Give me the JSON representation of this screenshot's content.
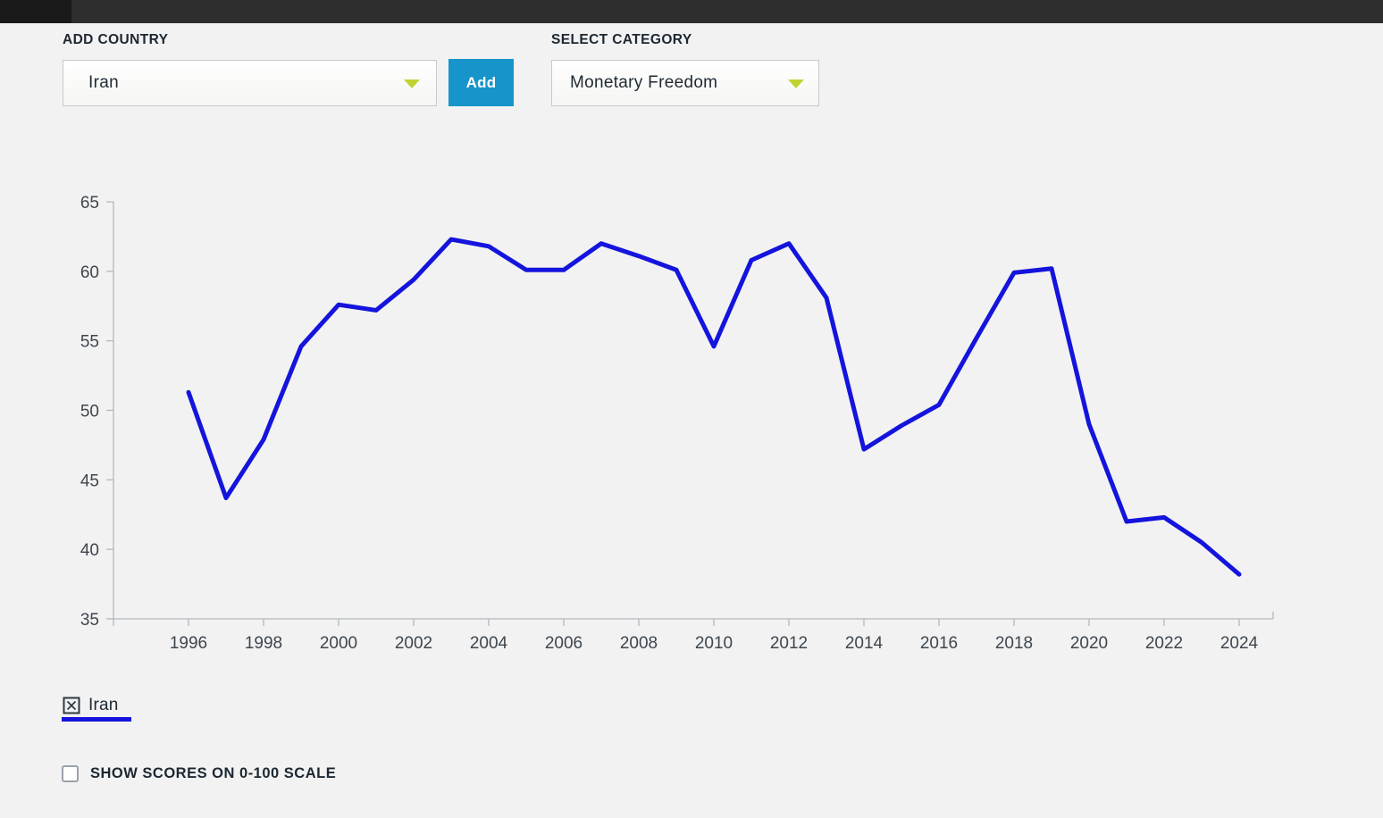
{
  "controls": {
    "add_country": {
      "label": "ADD COUNTRY",
      "dropdown_value": "Iran",
      "add_button_label": "Add"
    },
    "select_category": {
      "label": "SELECT CATEGORY",
      "dropdown_value": "Monetary Freedom"
    }
  },
  "chart_data": {
    "type": "line",
    "title": "",
    "xlabel": "",
    "ylabel": "",
    "ylim": [
      35,
      65
    ],
    "xlim": [
      1994,
      2025
    ],
    "grid": false,
    "legend_position": "bottom-left",
    "xticks": [
      1996,
      1998,
      2000,
      2002,
      2004,
      2006,
      2008,
      2010,
      2012,
      2014,
      2016,
      2018,
      2020,
      2022,
      2024
    ],
    "yticks": [
      35,
      40,
      45,
      50,
      55,
      60,
      65
    ],
    "series": [
      {
        "name": "Iran",
        "color": "#1414dd",
        "x": [
          1996,
          1997,
          1998,
          1999,
          2000,
          2001,
          2002,
          2003,
          2004,
          2005,
          2006,
          2007,
          2008,
          2009,
          2010,
          2011,
          2012,
          2013,
          2014,
          2015,
          2016,
          2017,
          2018,
          2019,
          2020,
          2021,
          2022,
          2023,
          2024
        ],
        "values": [
          51.3,
          43.7,
          47.9,
          54.6,
          57.6,
          57.2,
          59.4,
          62.3,
          61.8,
          60.1,
          60.1,
          62.0,
          61.1,
          60.1,
          54.6,
          60.8,
          62.0,
          58.1,
          47.2,
          48.9,
          50.4,
          55.2,
          59.9,
          60.2,
          49.0,
          42.0,
          42.3,
          40.5,
          38.2
        ]
      }
    ]
  },
  "legend": {
    "items": [
      {
        "label": "Iran",
        "color": "#1414dd",
        "remove_icon": "box-x-icon"
      }
    ]
  },
  "scale_toggle": {
    "label": "SHOW SCORES ON 0-100 SCALE",
    "checked": false
  },
  "colors": {
    "background": "#f2f2f2",
    "topbar": "#2e2e2e",
    "topbar_left_block": "#1a1a1a",
    "accent_blue": "#1794c9",
    "series_blue": "#1414dd",
    "dropdown_arrow_green": "#c1d32f",
    "axis_gray": "#b3b9be",
    "text_dark": "#1d2731"
  }
}
